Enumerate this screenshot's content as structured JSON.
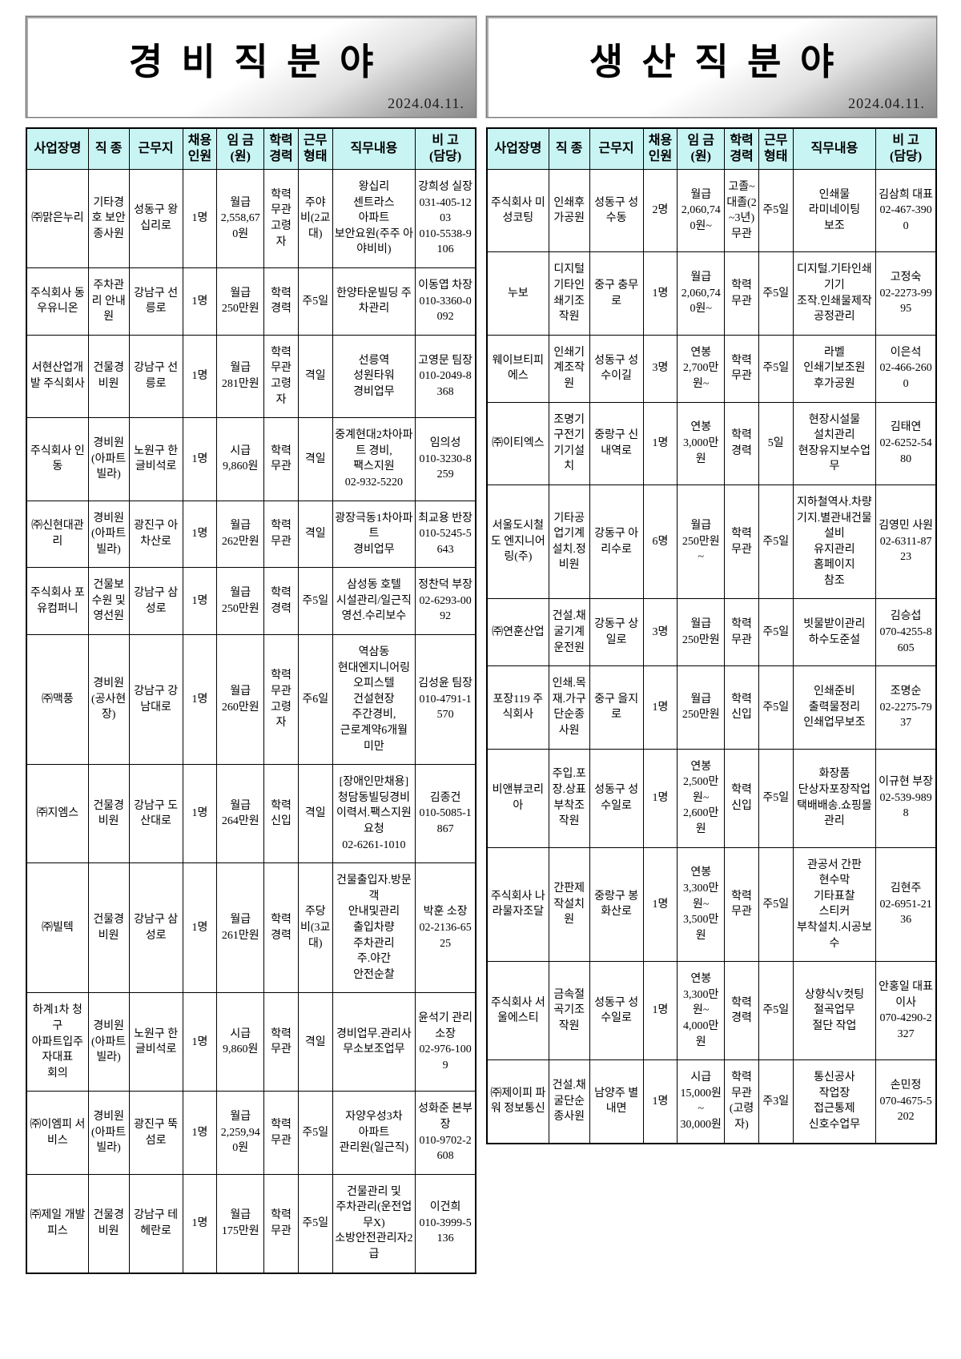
{
  "panels": [
    {
      "title": "경 비 직 분 야",
      "date": "2024.04.11.",
      "headers": [
        "사업장명",
        "직 종",
        "근무지",
        "채용\n인원",
        "임 금\n(원)",
        "학력\n경력",
        "근무\n형태",
        "직무내용",
        "비 고\n(담당)"
      ],
      "rows": [
        [
          "㈜맑은누리",
          "기타경호 보안종사원",
          "성동구 왕십리로",
          "1명",
          "월급\n2,558,670원",
          "학력무관 고령자",
          "주야비(2교대)",
          "왕십리\n센트라스\n아파트\n보안요원(주주 아야비비)",
          "강희성 실장\n031-405-1203\n010-5538-9106"
        ],
        [
          "주식회사 동우유니온",
          "주차관리 안내원",
          "강남구 선릉로",
          "1명",
          "월급\n250만원",
          "학력경력",
          "주5일",
          "한양타운빌딩 주차관리",
          "이동엽 차장\n010-3360-0092"
        ],
        [
          "서현산업개발 주식회사",
          "건물경비원",
          "강남구 선릉로",
          "1명",
          "월급\n281만원",
          "학력무관 고령자",
          "격일",
          "선릉역\n성원타워\n경비업무",
          "고영문 팀장\n010-2049-8368"
        ],
        [
          "주식회사 인동",
          "경비원(아파트빌라)",
          "노원구 한글비석로",
          "1명",
          "시급\n9,860원",
          "학력무관",
          "격일",
          "중계현대2차아파트 경비,\n팩스지원\n02-932-5220",
          "임의성\n010-3230-8259"
        ],
        [
          "㈜신현대관리",
          "경비원(아파트빌라)",
          "광진구 아차산로",
          "1명",
          "월급\n262만원",
          "학력무관",
          "격일",
          "광장극동1차아파트\n경비업무",
          "최교용 반장\n010-5245-5643"
        ],
        [
          "주식회사 포유컴퍼니",
          "건물보수원 및 영선원",
          "강남구 삼성로",
          "1명",
          "월급\n250만원",
          "학력경력",
          "주5일",
          "삼성동 호텔\n시설관리/일근직\n영선.수리보수",
          "정찬덕 부장\n02-6293-0092"
        ],
        [
          "㈜맥풍",
          "경비원(공사현장)",
          "강남구 강남대로",
          "1명",
          "월급\n260만원",
          "학력무관 고령자",
          "주6일",
          "역삼동\n현대엔지니어링 오피스텔\n건설현장\n주간경비,\n근로계약6개월 미만",
          "김성윤 팀장\n010-4791-1570"
        ],
        [
          "㈜지엠스",
          "건물경비원",
          "강남구 도산대로",
          "1명",
          "월급\n264만원",
          "학력신입",
          "격일",
          "[장애인만채용]\n청담동빌딩경비\n이력서.팩스지원요청\n02-6261-1010",
          "김종건\n010-5085-1867"
        ],
        [
          "㈜빌텍",
          "건물경비원",
          "강남구 삼성로",
          "1명",
          "월급\n261만원",
          "학력경력",
          "주당비(3교대)",
          "건물출입자.방문객\n안내및관리\n출입차량\n주차관리\n주.야간\n안전순찰",
          "박훈 소장\n02-2136-6525"
        ],
        [
          "하계1차 청구\n아파트입주자대표\n회의",
          "경비원(아파트빌라)",
          "노원구 한글비석로",
          "1명",
          "시급\n9,860원",
          "학력무관",
          "격일",
          "경비업무.관리사무소보조업무",
          "윤석기 관리소장\n02-976-1009"
        ],
        [
          "㈜이엠피 서비스",
          "경비원(아파트빌라)",
          "광진구 뚝섬로",
          "1명",
          "월급\n2,259,940원",
          "학력무관",
          "주5일",
          "자양우성3차\n아파트\n관리원(일근직)",
          "성화준 본부장\n010-9702-2608"
        ],
        [
          "㈜제일 개발피스",
          "건물경비원",
          "강남구 테헤란로",
          "1명",
          "월급\n175만원",
          "학력무관",
          "주5일",
          "건물관리 및\n주차관리(운전업무X)\n소방안전관리자2급",
          "이건희\n010-3999-5136"
        ]
      ]
    },
    {
      "title": "생 산 직 분 야",
      "date": "2024.04.11.",
      "headers": [
        "사업장명",
        "직 종",
        "근무지",
        "채용\n인원",
        "임 금\n(원)",
        "학력\n경력",
        "근무\n형태",
        "직무내용",
        "비 고\n(담당)"
      ],
      "rows": [
        [
          "주식회사 미성코팅",
          "인쇄후가공원",
          "성동구 성수동",
          "2명",
          "월급\n2,060,740원~",
          "고졸~대졸(2~3년) 무관",
          "주5일",
          "인쇄물\n라미네이팅\n보조",
          "김삼희 대표\n02-467-3900"
        ],
        [
          "누보",
          "디지털기타인쇄기조작원",
          "중구 충무로",
          "1명",
          "월급\n2,060,740원~",
          "학력무관",
          "주5일",
          "디지털.기타인쇄기기\n조작.인쇄물제작\n공정관리",
          "고정숙\n02-2273-9995"
        ],
        [
          "웨이브티피에스",
          "인쇄기계조작원",
          "성동구 성수이길",
          "3명",
          "연봉\n2,700만원~",
          "학력무관",
          "주5일",
          "라벨\n인쇄기보조원\n후가공원",
          "이은석\n02-466-2600"
        ],
        [
          "㈜이티엑스",
          "조명기구전기기기설치",
          "중랑구 신내역로",
          "1명",
          "연봉\n3,000만원",
          "학력경력",
          "5일",
          "현장시설물\n설치관리\n현장유지보수업무",
          "김태연\n02-6252-5480"
        ],
        [
          "서울도시철도 엔지니어링(주)",
          "기타공업기계설치.정비원",
          "강동구 아리수로",
          "6명",
          "월급\n250만원~",
          "학력무관",
          "주5일",
          "지하철역사.차량기지.별관내건물\n설비\n유지관리\n홈페이지\n참조",
          "김영민 사원\n02-6311-8723"
        ],
        [
          "㈜연훈산업",
          "건설.채굴기계운전원",
          "강동구 상일로",
          "3명",
          "월급\n250만원",
          "학력무관",
          "주5일",
          "빗물받이관리\n하수도준설",
          "김승섭\n070-4255-8605"
        ],
        [
          "포장119 주식회사",
          "인쇄.목재.가구단순종사원",
          "중구 을지로",
          "1명",
          "월급\n250만원",
          "학력신입",
          "주5일",
          "인쇄준비\n출력물정리\n인쇄업무보조",
          "조명순\n02-2275-7937"
        ],
        [
          "비앤뷰코리아",
          "주입.포장.상표부착조작원",
          "성동구 성수일로",
          "1명",
          "연봉\n2,500만원~\n2,600만원",
          "학력신입",
          "주5일",
          "화장품\n단상자포장작업\n택배배송.쇼핑몰관리",
          "이규현 부장\n02-539-9898"
        ],
        [
          "주식회사 나라물자조달",
          "간판제작설치원",
          "중랑구 봉화산로",
          "1명",
          "연봉\n3,300만원~\n3,500만원",
          "학력무관",
          "주5일",
          "관공서 간판\n현수막\n기타표찰\n스티커\n부착설치.시공보수",
          "김현주\n02-6951-2136"
        ],
        [
          "주식회사 서울에스티",
          "금속절곡기조작원",
          "성동구 성수일로",
          "1명",
          "연봉\n3,300만원~\n4,000만원",
          "학력경력",
          "주5일",
          "상향식V컷팅\n절곡업무\n절단 작업",
          "안홍일 대표이사\n070-4290-2327"
        ],
        [
          "㈜제이피 파워 정보통신",
          "건설.채굴단순종사원",
          "남양주 별내면",
          "1명",
          "시급\n15,000원~\n30,000원",
          "학력무관\n(고령자)",
          "주3일",
          "통신공사\n작업장\n접근통제\n신호수업무",
          "손민정\n070-4675-5202"
        ]
      ]
    }
  ]
}
